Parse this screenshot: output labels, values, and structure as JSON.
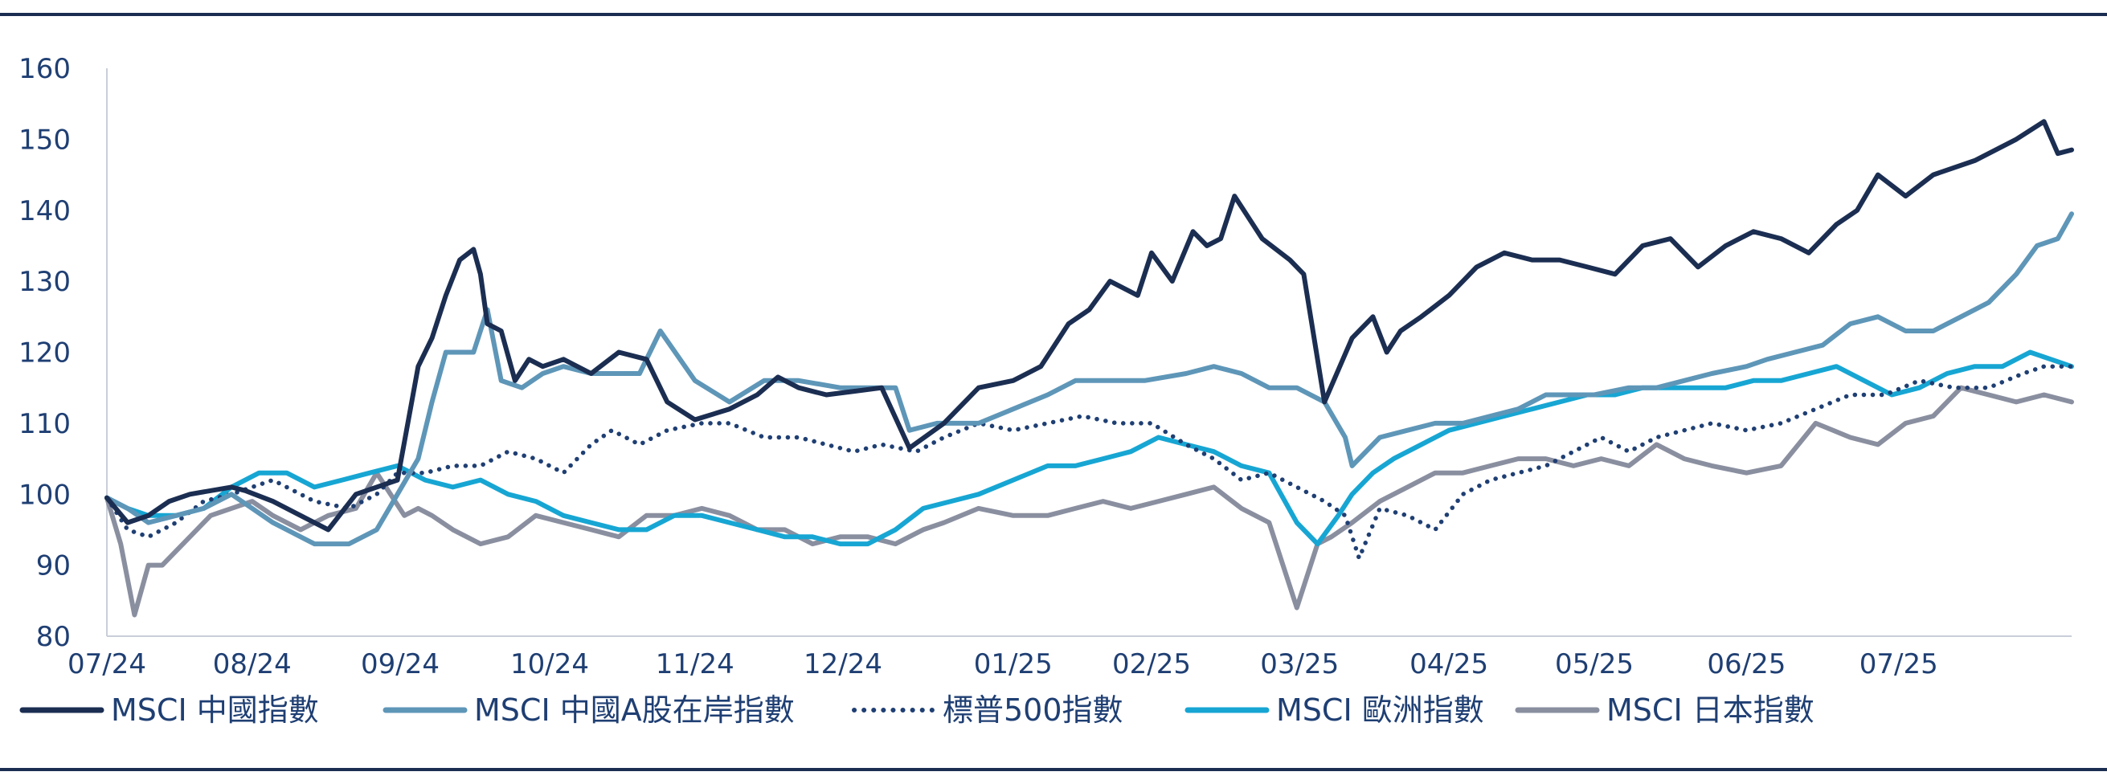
{
  "chart_data": {
    "type": "line",
    "title": "",
    "xlabel": "",
    "ylabel": "",
    "ylim": [
      80,
      160
    ],
    "yticks": [
      80,
      90,
      100,
      110,
      120,
      130,
      140,
      150,
      160
    ],
    "x_tick_labels": [
      "07/24",
      "08/24",
      "09/24",
      "10/24",
      "11/24",
      "12/24",
      "01/25",
      "02/25",
      "03/25",
      "04/25",
      "05/25",
      "06/25",
      "07/25"
    ],
    "x_tick_positions": [
      0,
      1.05,
      2.12,
      3.2,
      4.25,
      5.32,
      6.55,
      7.55,
      8.62,
      9.7,
      10.75,
      11.85,
      12.95
    ],
    "xlim": [
      0,
      14.2
    ],
    "grid": false,
    "legend_position": "bottom",
    "series": [
      {
        "name": "MSCI 中國指數",
        "color": "#1b2e52",
        "style": "solid",
        "x": [
          0,
          0.15,
          0.3,
          0.45,
          0.6,
          0.9,
          1.0,
          1.2,
          1.4,
          1.6,
          1.8,
          1.95,
          2.1,
          2.25,
          2.35,
          2.45,
          2.55,
          2.65,
          2.7,
          2.75,
          2.85,
          2.95,
          3.05,
          3.15,
          3.3,
          3.5,
          3.7,
          3.9,
          4.05,
          4.25,
          4.5,
          4.7,
          4.85,
          5.0,
          5.2,
          5.4,
          5.6,
          5.8,
          6.05,
          6.3,
          6.55,
          6.75,
          6.95,
          7.1,
          7.25,
          7.45,
          7.55,
          7.7,
          7.85,
          7.95,
          8.05,
          8.15,
          8.35,
          8.55,
          8.65,
          8.8,
          9.0,
          9.15,
          9.25,
          9.35,
          9.5,
          9.7,
          9.9,
          10.1,
          10.3,
          10.5,
          10.7,
          10.9,
          11.1,
          11.3,
          11.5,
          11.7,
          11.9,
          12.1,
          12.3,
          12.5,
          12.65,
          12.8,
          13.0,
          13.2,
          13.5,
          13.8,
          14.0,
          14.1,
          14.2
        ],
        "y": [
          99.5,
          96,
          97,
          99,
          100,
          101,
          100.5,
          99,
          97,
          95,
          100,
          101,
          102,
          118,
          122,
          128,
          133,
          134.5,
          131,
          124,
          123,
          116,
          119,
          118,
          119,
          117,
          120,
          119,
          113,
          110.5,
          112,
          114,
          116.5,
          115,
          114,
          114.5,
          115,
          106.5,
          110,
          115,
          116,
          118,
          124,
          126,
          130,
          128,
          134,
          130,
          137,
          135,
          136,
          142,
          136,
          133,
          131,
          113,
          122,
          125,
          120,
          123,
          125,
          128,
          132,
          134,
          133,
          133,
          132,
          131,
          135,
          136,
          132,
          135,
          137,
          136,
          134,
          138,
          140,
          145,
          142,
          145,
          147,
          150,
          152.5,
          148,
          148.5
        ]
      },
      {
        "name": "MSCI 中國A股在岸指數",
        "color": "#5e96b8",
        "style": "solid",
        "x": [
          0,
          0.15,
          0.3,
          0.5,
          0.7,
          0.9,
          1.05,
          1.2,
          1.5,
          1.75,
          1.95,
          2.1,
          2.25,
          2.35,
          2.45,
          2.55,
          2.65,
          2.75,
          2.85,
          3.0,
          3.15,
          3.3,
          3.5,
          3.7,
          3.85,
          4.0,
          4.25,
          4.5,
          4.75,
          5.0,
          5.3,
          5.5,
          5.7,
          5.8,
          6.0,
          6.3,
          6.55,
          6.8,
          7.0,
          7.2,
          7.5,
          7.8,
          8.0,
          8.2,
          8.4,
          8.6,
          8.8,
          8.95,
          9.0,
          9.2,
          9.4,
          9.6,
          9.8,
          10.0,
          10.2,
          10.4,
          10.6,
          10.75,
          11.0,
          11.2,
          11.4,
          11.6,
          11.85,
          12.0,
          12.2,
          12.4,
          12.6,
          12.8,
          13.0,
          13.2,
          13.4,
          13.6,
          13.8,
          13.95,
          14.1,
          14.2
        ],
        "y": [
          99.5,
          98,
          96,
          97,
          98,
          100,
          98,
          96,
          93,
          93,
          95,
          100,
          105,
          113,
          120,
          120,
          120,
          126,
          116,
          115,
          117,
          118,
          117,
          117,
          117,
          123,
          116,
          113,
          116,
          116,
          115,
          115,
          115,
          109,
          110,
          110,
          112,
          114,
          116,
          116,
          116,
          117,
          118,
          117,
          115,
          115,
          113,
          108,
          104,
          108,
          109,
          110,
          110,
          111,
          112,
          114,
          114,
          114,
          115,
          115,
          116,
          117,
          118,
          119,
          120,
          121,
          124,
          125,
          123,
          123,
          125,
          127,
          131,
          135,
          136,
          139.5
        ]
      },
      {
        "name": "標普500指數",
        "color": "#1f3f73",
        "style": "dotted",
        "x": [
          0,
          0.15,
          0.3,
          0.5,
          0.7,
          0.9,
          1.05,
          1.2,
          1.5,
          1.75,
          1.95,
          2.1,
          2.3,
          2.5,
          2.7,
          2.9,
          3.1,
          3.3,
          3.5,
          3.65,
          3.85,
          4.05,
          4.3,
          4.5,
          4.75,
          5.0,
          5.2,
          5.4,
          5.6,
          5.85,
          6.05,
          6.3,
          6.55,
          6.8,
          7.05,
          7.3,
          7.55,
          7.8,
          8.0,
          8.2,
          8.4,
          8.6,
          8.8,
          8.95,
          9.05,
          9.2,
          9.4,
          9.6,
          9.8,
          10.0,
          10.2,
          10.4,
          10.6,
          10.8,
          11.0,
          11.2,
          11.4,
          11.6,
          11.85,
          12.1,
          12.35,
          12.6,
          12.85,
          13.1,
          13.35,
          13.6,
          13.85,
          14.0,
          14.2
        ],
        "y": [
          99.5,
          95,
          94,
          96,
          99,
          100,
          101,
          102,
          99,
          98,
          100,
          103,
          103,
          104,
          104,
          106,
          105,
          103,
          107,
          109,
          107,
          109,
          110,
          110,
          108,
          108,
          107,
          106,
          107,
          106,
          108,
          110,
          109,
          110,
          111,
          110,
          110,
          107,
          105,
          102,
          103,
          101,
          99,
          97,
          91,
          98,
          97,
          95,
          100,
          102,
          103,
          104,
          106,
          108,
          106,
          108,
          109,
          110,
          109,
          110,
          112,
          114,
          114,
          116,
          115,
          115,
          117,
          118,
          118
        ]
      },
      {
        "name": "MSCI 歐洲指數",
        "color": "#17a6d3",
        "style": "solid",
        "x": [
          0,
          0.15,
          0.3,
          0.5,
          0.7,
          0.9,
          1.1,
          1.3,
          1.5,
          1.7,
          1.9,
          2.1,
          2.3,
          2.5,
          2.7,
          2.9,
          3.1,
          3.3,
          3.5,
          3.7,
          3.9,
          4.1,
          4.3,
          4.5,
          4.7,
          4.9,
          5.1,
          5.3,
          5.5,
          5.7,
          5.9,
          6.1,
          6.3,
          6.55,
          6.8,
          7.0,
          7.2,
          7.4,
          7.6,
          7.8,
          8.0,
          8.2,
          8.4,
          8.6,
          8.75,
          8.9,
          9.0,
          9.15,
          9.3,
          9.5,
          9.7,
          9.9,
          10.1,
          10.3,
          10.5,
          10.7,
          10.9,
          11.1,
          11.3,
          11.5,
          11.7,
          11.9,
          12.1,
          12.3,
          12.5,
          12.7,
          12.9,
          13.1,
          13.3,
          13.5,
          13.7,
          13.9,
          14.05,
          14.2
        ],
        "y": [
          99.5,
          98,
          97,
          97,
          98,
          101,
          103,
          103,
          101,
          102,
          103,
          104,
          102,
          101,
          102,
          100,
          99,
          97,
          96,
          95,
          95,
          97,
          97,
          96,
          95,
          94,
          94,
          93,
          93,
          95,
          98,
          99,
          100,
          102,
          104,
          104,
          105,
          106,
          108,
          107,
          106,
          104,
          103,
          96,
          93,
          97,
          100,
          103,
          105,
          107,
          109,
          110,
          111,
          112,
          113,
          114,
          114,
          115,
          115,
          115,
          115,
          116,
          116,
          117,
          118,
          116,
          114,
          115,
          117,
          118,
          118,
          120,
          119,
          118
        ]
      },
      {
        "name": "MSCI 日本指數",
        "color": "#8a8fa0",
        "style": "solid",
        "x": [
          0,
          0.1,
          0.2,
          0.3,
          0.4,
          0.6,
          0.75,
          0.9,
          1.05,
          1.2,
          1.4,
          1.6,
          1.8,
          1.95,
          2.05,
          2.15,
          2.25,
          2.35,
          2.5,
          2.7,
          2.9,
          3.1,
          3.3,
          3.5,
          3.7,
          3.9,
          4.1,
          4.3,
          4.5,
          4.7,
          4.9,
          5.1,
          5.3,
          5.5,
          5.7,
          5.9,
          6.05,
          6.3,
          6.55,
          6.8,
          7.0,
          7.2,
          7.4,
          7.6,
          7.8,
          8.0,
          8.2,
          8.4,
          8.6,
          8.75,
          8.85,
          9.0,
          9.2,
          9.4,
          9.6,
          9.8,
          10.0,
          10.2,
          10.4,
          10.6,
          10.8,
          11.0,
          11.2,
          11.4,
          11.6,
          11.85,
          12.1,
          12.35,
          12.6,
          12.8,
          13.0,
          13.2,
          13.4,
          13.6,
          13.8,
          14.0,
          14.2
        ],
        "y": [
          99.5,
          93,
          83,
          90,
          90,
          94,
          97,
          98,
          99,
          97,
          95,
          97,
          98,
          103,
          100,
          97,
          98,
          97,
          95,
          93,
          94,
          97,
          96,
          95,
          94,
          97,
          97,
          98,
          97,
          95,
          95,
          93,
          94,
          94,
          93,
          95,
          96,
          98,
          97,
          97,
          98,
          99,
          98,
          99,
          100,
          101,
          98,
          96,
          84,
          93,
          94,
          96,
          99,
          101,
          103,
          103,
          104,
          105,
          105,
          104,
          105,
          104,
          107,
          105,
          104,
          103,
          104,
          110,
          108,
          107,
          110,
          111,
          115,
          114,
          113,
          114,
          113
        ]
      }
    ]
  },
  "legend": {
    "items": [
      {
        "label": "MSCI 中國指數"
      },
      {
        "label": "MSCI 中國A股在岸指數"
      },
      {
        "label": "標普500指數"
      },
      {
        "label": "MSCI 歐洲指數"
      },
      {
        "label": "MSCI 日本指數"
      }
    ]
  }
}
